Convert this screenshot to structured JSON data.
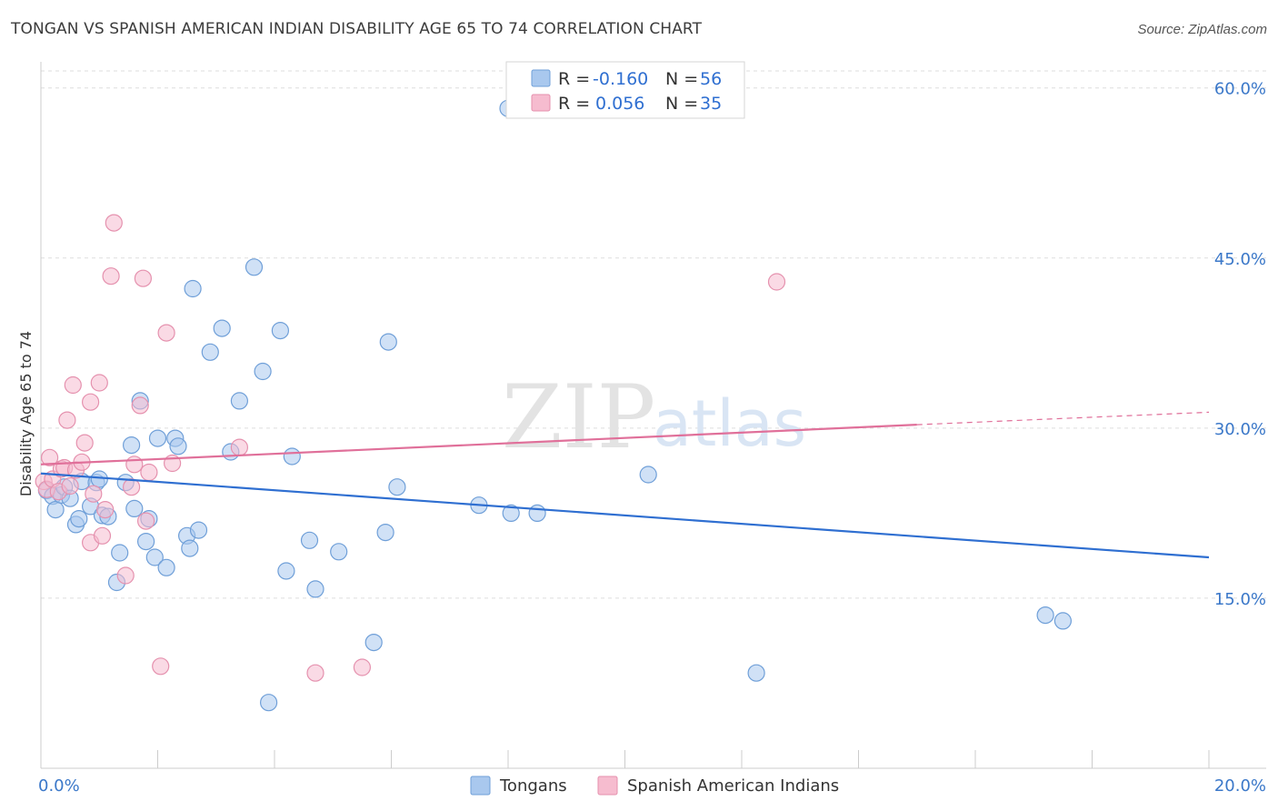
{
  "title": "TONGAN VS SPANISH AMERICAN INDIAN DISABILITY AGE 65 TO 74 CORRELATION CHART",
  "source": "Source: ZipAtlas.com",
  "watermark": {
    "zip": "ZIP",
    "atlas": "atlas"
  },
  "colors": {
    "tongans_fill": "#a9c8ee",
    "tongans_stroke": "#6f9fd8",
    "tongans_line": "#2f6fd1",
    "spanish_fill": "#f6bccf",
    "spanish_stroke": "#e591ae",
    "spanish_line": "#e0709a",
    "grid": "#dddddd",
    "axis_label": "#3b78c9"
  },
  "legend": {
    "rows": [
      {
        "r_label": "R =",
        "r_value": "-0.160",
        "n_label": "N =",
        "n_value": "56"
      },
      {
        "r_label": "R =",
        "r_value": "0.056",
        "n_label": "N =",
        "n_value": "35"
      }
    ]
  },
  "bottom_legend": [
    "Tongans",
    "Spanish American Indians"
  ],
  "chart_data": {
    "type": "scatter",
    "title": "TONGAN VS SPANISH AMERICAN INDIAN DISABILITY AGE 65 TO 74 CORRELATION CHART",
    "xlabel": "",
    "ylabel": "Disability Age 65 to 74",
    "xlim": [
      0,
      20
    ],
    "ylim": [
      0,
      61.5
    ],
    "x_tick_labels": [
      "0.0%",
      "20.0%"
    ],
    "y_ticks": [
      15,
      30,
      45,
      60
    ],
    "y_tick_labels": [
      "15.0%",
      "30.0%",
      "45.0%",
      "60.0%"
    ],
    "grid": true,
    "legend_position": "top-center",
    "series": [
      {
        "name": "Tongans",
        "r": -0.16,
        "n": 56,
        "trend": {
          "x": [
            0,
            20
          ],
          "y": [
            26.0,
            18.6
          ]
        },
        "points": [
          [
            0.1,
            24.5
          ],
          [
            0.2,
            24.0
          ],
          [
            0.25,
            22.8
          ],
          [
            0.35,
            24.1
          ],
          [
            0.4,
            24.8
          ],
          [
            0.5,
            23.8
          ],
          [
            0.6,
            21.5
          ],
          [
            0.65,
            22.0
          ],
          [
            0.7,
            25.3
          ],
          [
            0.85,
            23.1
          ],
          [
            0.95,
            25.2
          ],
          [
            1.0,
            25.5
          ],
          [
            1.05,
            22.3
          ],
          [
            1.15,
            22.2
          ],
          [
            1.3,
            16.4
          ],
          [
            1.35,
            19.0
          ],
          [
            1.45,
            25.2
          ],
          [
            1.55,
            28.5
          ],
          [
            1.6,
            22.9
          ],
          [
            1.7,
            32.4
          ],
          [
            1.8,
            20.0
          ],
          [
            1.85,
            22.0
          ],
          [
            1.95,
            18.6
          ],
          [
            2.0,
            29.1
          ],
          [
            2.15,
            17.7
          ],
          [
            2.3,
            29.1
          ],
          [
            2.35,
            28.4
          ],
          [
            2.5,
            20.5
          ],
          [
            2.55,
            19.4
          ],
          [
            2.6,
            42.3
          ],
          [
            2.7,
            21.0
          ],
          [
            2.9,
            36.7
          ],
          [
            3.1,
            38.8
          ],
          [
            3.25,
            27.9
          ],
          [
            3.4,
            32.4
          ],
          [
            3.65,
            44.2
          ],
          [
            3.8,
            35.0
          ],
          [
            3.9,
            5.8
          ],
          [
            4.1,
            38.6
          ],
          [
            4.2,
            17.4
          ],
          [
            4.3,
            27.5
          ],
          [
            4.6,
            20.1
          ],
          [
            4.7,
            15.8
          ],
          [
            5.1,
            19.1
          ],
          [
            5.7,
            11.1
          ],
          [
            5.9,
            20.8
          ],
          [
            5.95,
            37.6
          ],
          [
            6.1,
            24.8
          ],
          [
            7.5,
            23.2
          ],
          [
            8.0,
            58.2
          ],
          [
            8.05,
            22.5
          ],
          [
            8.5,
            22.5
          ],
          [
            10.4,
            25.9
          ],
          [
            12.25,
            8.4
          ],
          [
            17.2,
            13.5
          ],
          [
            17.5,
            13.0
          ]
        ]
      },
      {
        "name": "Spanish American Indians",
        "r": 0.056,
        "n": 35,
        "trend": {
          "x": [
            0,
            15
          ],
          "y": [
            26.8,
            30.3
          ]
        },
        "trend_dashed": {
          "x": [
            15,
            20
          ],
          "y": [
            30.3,
            31.4
          ]
        },
        "points": [
          [
            0.05,
            25.3
          ],
          [
            0.1,
            24.6
          ],
          [
            0.15,
            27.4
          ],
          [
            0.2,
            25.5
          ],
          [
            0.3,
            24.4
          ],
          [
            0.35,
            26.4
          ],
          [
            0.4,
            26.5
          ],
          [
            0.45,
            30.7
          ],
          [
            0.5,
            24.9
          ],
          [
            0.55,
            33.8
          ],
          [
            0.6,
            26.3
          ],
          [
            0.7,
            27.0
          ],
          [
            0.75,
            28.7
          ],
          [
            0.85,
            32.3
          ],
          [
            0.85,
            19.9
          ],
          [
            0.9,
            24.2
          ],
          [
            1.0,
            34.0
          ],
          [
            1.05,
            20.5
          ],
          [
            1.1,
            22.8
          ],
          [
            1.2,
            43.4
          ],
          [
            1.25,
            48.1
          ],
          [
            1.45,
            17.0
          ],
          [
            1.55,
            24.8
          ],
          [
            1.6,
            26.8
          ],
          [
            1.7,
            32.0
          ],
          [
            1.75,
            43.2
          ],
          [
            1.8,
            21.8
          ],
          [
            1.85,
            26.1
          ],
          [
            2.05,
            9.0
          ],
          [
            2.15,
            38.4
          ],
          [
            2.25,
            26.9
          ],
          [
            3.4,
            28.3
          ],
          [
            4.7,
            8.4
          ],
          [
            5.5,
            8.9
          ],
          [
            12.6,
            42.9
          ]
        ]
      }
    ]
  }
}
